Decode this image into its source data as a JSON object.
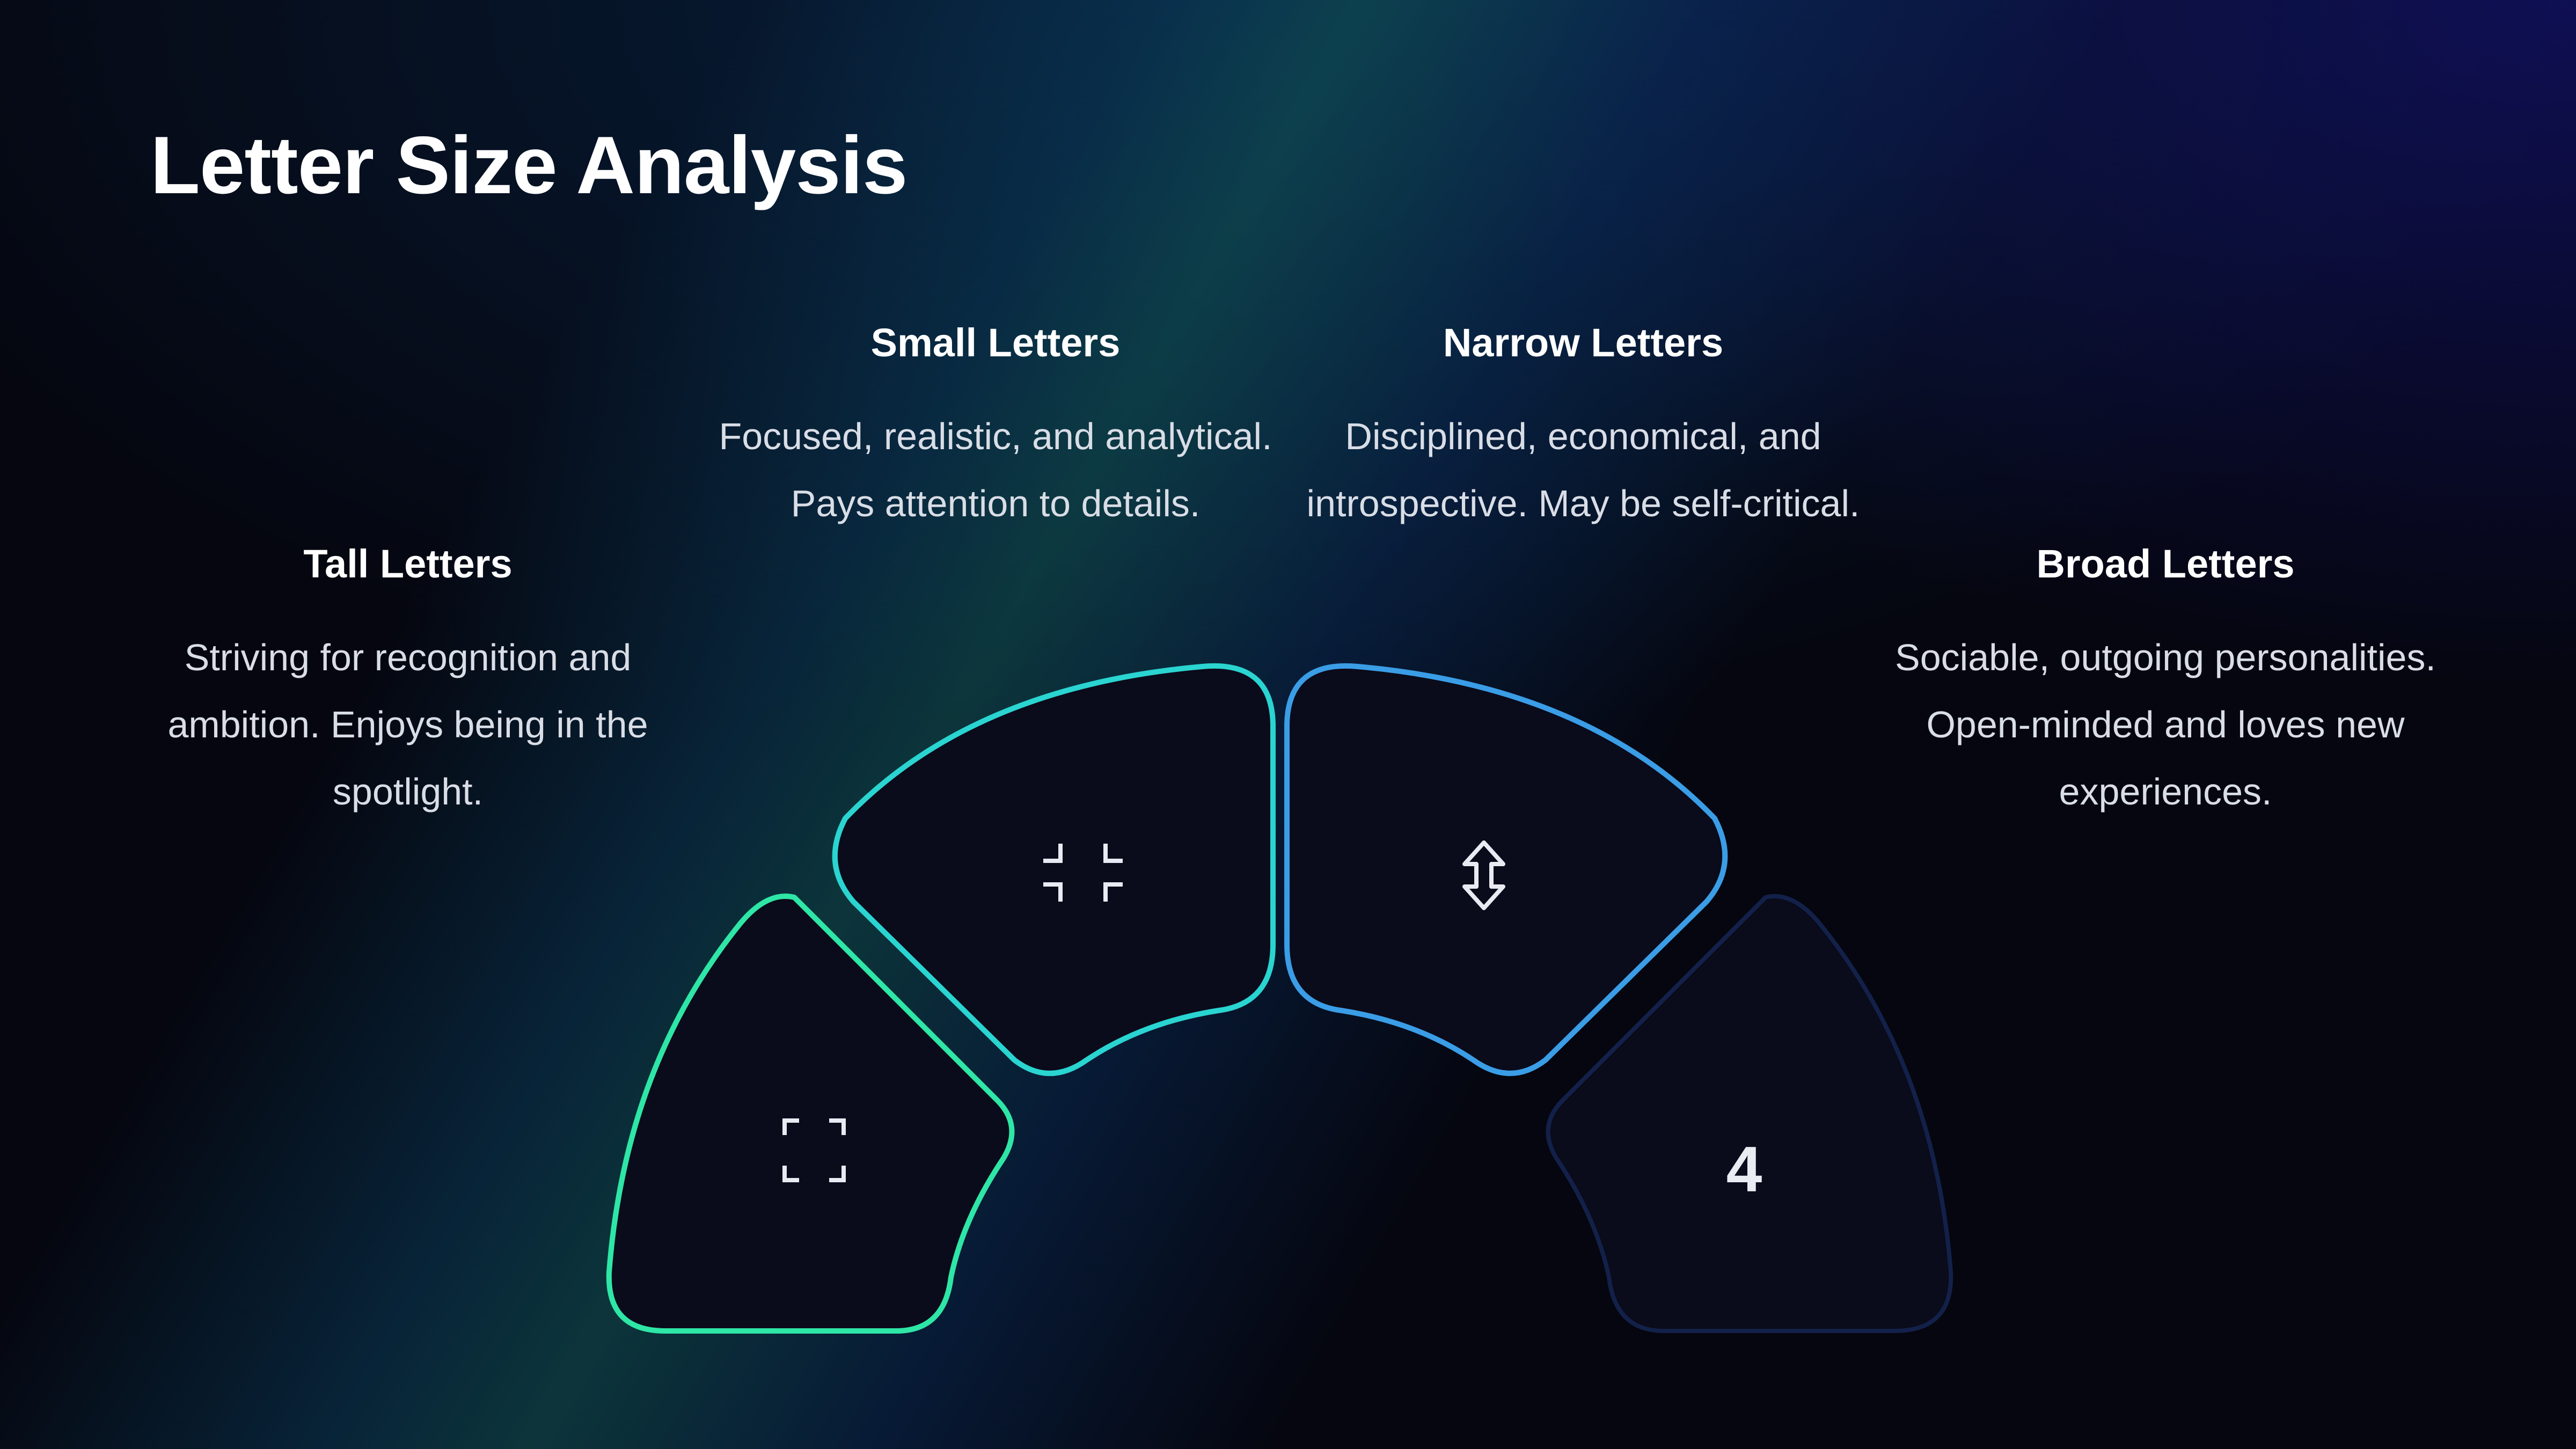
{
  "title": "Letter Size Analysis",
  "segments": [
    {
      "heading": "Tall Letters",
      "description": "Striving for recognition and ambition. Enjoys being in the spotlight.",
      "icon": "expand-icon",
      "color": "#2ee6a6"
    },
    {
      "heading": "Small Letters",
      "description": "Focused, realistic, and analytical. Pays attention to details.",
      "icon": "compress-icon",
      "color": "#2ad4d0"
    },
    {
      "heading": "Narrow Letters",
      "description": "Disciplined, economical, and introspective. May be self-critical.",
      "icon": "vertical-arrows-icon",
      "color": "#3a9de6"
    },
    {
      "heading": "Broad Letters",
      "description": "Sociable, outgoing personalities. Open-minded and loves new experiences.",
      "icon": "number-4",
      "label": "4",
      "color": "#13214a"
    }
  ]
}
